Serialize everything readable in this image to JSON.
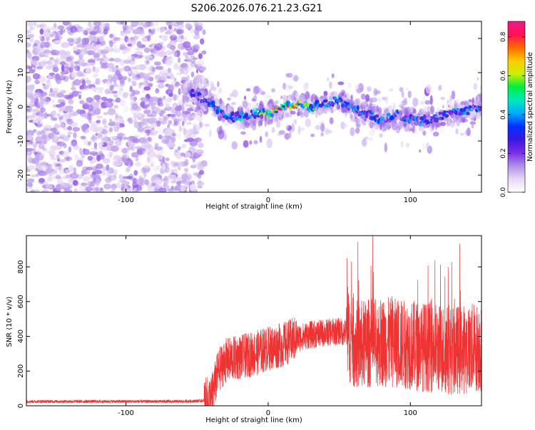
{
  "figure_title": "S206.2026.076.21.23.G21",
  "colors": {
    "snr_line": "#ee3333",
    "axis": "#000000",
    "background": "#ffffff",
    "colormap": [
      "#ffffff",
      "#e8d8f4",
      "#b090e8",
      "#7a2ee6",
      "#3a18e0",
      "#0030ff",
      "#00aaff",
      "#00e8c0",
      "#00ee40",
      "#ccee00",
      "#ffcc00",
      "#ff6a00",
      "#ff1155",
      "#ee1a8a"
    ]
  },
  "chart_data": [
    {
      "type": "heatmap",
      "title": "S206.2026.076.21.23.G21",
      "xlabel": "Height of straight line (km)",
      "ylabel": "Frequency (Hz)",
      "xlim": [
        -170,
        150
      ],
      "ylim": [
        -25,
        25
      ],
      "xticks": [
        -100,
        0,
        100
      ],
      "yticks": [
        -20,
        -10,
        0,
        10,
        20
      ],
      "noise_region_x": [
        -170,
        -55
      ],
      "ridge": {
        "x": [
          -55,
          -40,
          -30,
          -20,
          -10,
          0,
          10,
          20,
          30,
          40,
          50,
          60,
          70,
          80,
          90,
          100,
          110,
          120,
          130,
          140,
          150
        ],
        "y": [
          4,
          1,
          -3,
          -3,
          -2,
          -2,
          0,
          1,
          0,
          1,
          2,
          -1,
          -2,
          -4,
          -2,
          -4,
          -4,
          -3,
          -2,
          -1,
          0
        ]
      },
      "peak_amplitude": 0.88,
      "colorbar": {
        "label": "Normalized spectral amplitude",
        "lim": [
          0,
          0.88
        ],
        "ticks": [
          "0.0",
          "0.2",
          "0.4",
          "0.6",
          "0.8"
        ]
      }
    },
    {
      "type": "line",
      "xlabel": "Height of straight line (km)",
      "ylabel": "SNR (10 * v/v)",
      "xlim": [
        -170,
        150
      ],
      "ylim": [
        0,
        980
      ],
      "xticks": [
        -100,
        0,
        100
      ],
      "yticks": [
        0,
        200,
        400,
        600,
        800
      ],
      "series": [
        {
          "x": [
            -170,
            -150,
            -120,
            -90,
            -60,
            -45,
            -40,
            -35,
            -30,
            -20,
            -10,
            0,
            10,
            20,
            30,
            40,
            50,
            55,
            60,
            65,
            70,
            80,
            90,
            100,
            110,
            120,
            130,
            140,
            150
          ],
          "y": [
            25,
            25,
            25,
            25,
            25,
            30,
            50,
            200,
            260,
            280,
            300,
            330,
            350,
            390,
            410,
            420,
            430,
            420,
            360,
            350,
            360,
            370,
            360,
            350,
            340,
            330,
            320,
            330,
            340
          ]
        }
      ]
    }
  ]
}
